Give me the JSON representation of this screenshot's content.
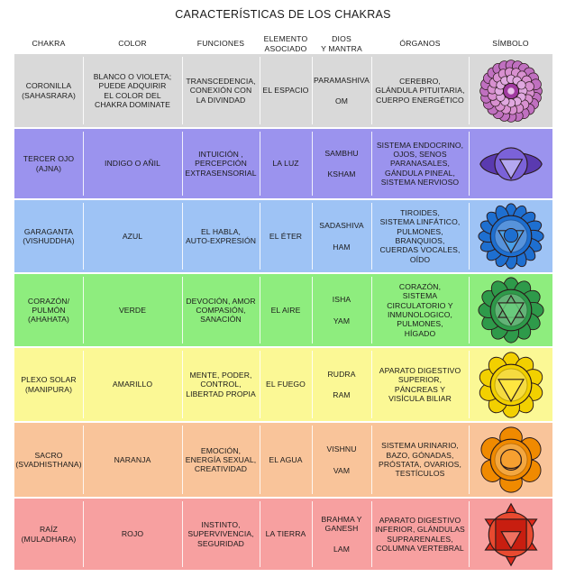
{
  "title": "CARACTERÍSTICAS DE LOS CHAKRAS",
  "headers": {
    "chakra": "CHAKRA",
    "color": "COLOR",
    "funciones": "FUNCIONES",
    "elemento": [
      "ELEMENTO",
      "ASOCIADO"
    ],
    "dios": [
      "DIOS",
      "Y MANTRA"
    ],
    "organos": "ÓRGANOS",
    "simbolo": "SÍMBOLO"
  },
  "rows": [
    {
      "bg": "#d9d9d9",
      "chakra": [
        "CORONILLA",
        "(SAHASRARA)"
      ],
      "color": [
        "BLANCO O VIOLETA;",
        "PUEDE ADQUIRIR",
        "EL COLOR DEL",
        "CHAKRA DOMINATE"
      ],
      "funciones": [
        "TRANSCEDENCIA,",
        "CONEXIÓN CON",
        "LA DIVINDAD"
      ],
      "elemento": "EL ESPACIO",
      "dios": "PARAMASHIVA",
      "mantra": "OM",
      "organos": [
        "CEREBRO,",
        "GLÁNDULA PITUITARIA,",
        "CUERPO ENERGÉTICO"
      ],
      "symbol": "crown-chakra-icon",
      "symbol_color": "#c060b8"
    },
    {
      "bg": "#9b93ee",
      "chakra": [
        "TERCER OJO",
        "(AJNA)"
      ],
      "color": [
        "INDIGO O AÑIL"
      ],
      "funciones": [
        "INTUICIÓN ,",
        "PERCEPCIÓN",
        "EXTRASENSORIAL"
      ],
      "elemento": "LA LUZ",
      "dios": "SAMBHU",
      "mantra": "KSHAM",
      "organos": [
        "SISTEMA ENDOCRINO,",
        "OJOS, SENOS",
        "PARANASALES,",
        "GÁNDULA PINEAL,",
        "SISTEMA NERVIOSO"
      ],
      "symbol": "third-eye-chakra-icon",
      "symbol_color": "#5a44b0"
    },
    {
      "bg": "#9ec3f5",
      "chakra": [
        "GARAGANTA",
        "(VISHUDDHA)"
      ],
      "color": [
        "AZUL"
      ],
      "funciones": [
        "EL HABLA,",
        "AUTO-EXPRESIÓN"
      ],
      "elemento": "EL ÉTER",
      "dios": "SADASHIVA",
      "mantra": "HAM",
      "organos": [
        "TIROIDES,",
        "SISTEMA LINFÁTICO,",
        "PULMONES,",
        "BRANQUIOS,",
        "CUERDAS VOCALES,",
        "OÍDO"
      ],
      "symbol": "throat-chakra-icon",
      "symbol_color": "#1e6fd0"
    },
    {
      "bg": "#8eed7e",
      "chakra": [
        "CORAZÓN/",
        "PULMÓN",
        "(AHAHATA)"
      ],
      "color": [
        "VERDE"
      ],
      "funciones": [
        "DEVOCIÓN, AMOR",
        "COMPASIÓN,",
        "SANACIÓN"
      ],
      "elemento": "EL AIRE",
      "dios": "ISHA",
      "mantra": "YAM",
      "organos": [
        "CORAZÓN,",
        "SISTEMA",
        "CIRCULATORIO Y",
        "INMUNOLOGICO,",
        "PULMONES,",
        "HÍGADO"
      ],
      "symbol": "heart-chakra-icon",
      "symbol_color": "#2e9a4a"
    },
    {
      "bg": "#fbf895",
      "chakra": [
        "PLEXO SOLAR",
        "(MANIPURA)"
      ],
      "color": [
        "AMARILLO"
      ],
      "funciones": [
        "MENTE, PODER,",
        "CONTROL,",
        "LIBERTAD PROPIA"
      ],
      "elemento": "EL FUEGO",
      "dios": "RUDRA",
      "mantra": "RAM",
      "organos": [
        "APARATO DIGESTIVO",
        "SUPERIOR,",
        "PÁNCREAS Y",
        "VISÍCULA BILIAR"
      ],
      "symbol": "solar-plexus-chakra-icon",
      "symbol_color": "#f2d000"
    },
    {
      "bg": "#f9c49a",
      "chakra": [
        "SACRO",
        "(SVADHISTHANA)"
      ],
      "color": [
        "NARANJA"
      ],
      "funciones": [
        "EMOCIÓN,",
        "ENERGÍA SEXUAL,",
        "CREATIVIDAD"
      ],
      "elemento": "EL AGUA",
      "dios": "VISHNU",
      "mantra": "VAM",
      "organos": [
        "SISTEMA URINARIO,",
        "BAZO, GÓNADAS,",
        "PRÓSTATA, OVARIOS,",
        "TESTÍCULOS"
      ],
      "symbol": "sacral-chakra-icon",
      "symbol_color": "#f08a00"
    },
    {
      "bg": "#f7a0a0",
      "chakra": [
        "RAÍZ",
        "(MULADHARA)"
      ],
      "color": [
        "ROJO"
      ],
      "funciones": [
        "INSTINTO,",
        "SUPERVIVENCIA,",
        "SEGURIDAD"
      ],
      "elemento": "LA TIERRA",
      "dios": "BRAHMA Y\nGANESH",
      "mantra": "LAM",
      "organos": [
        "APARATO DIGESTIVO",
        "INFERIOR, GLÁNDULAS",
        "SUPRARENALES,",
        "COLUMNA VERTEBRAL"
      ],
      "symbol": "root-chakra-icon",
      "symbol_color": "#e02a1a"
    }
  ]
}
